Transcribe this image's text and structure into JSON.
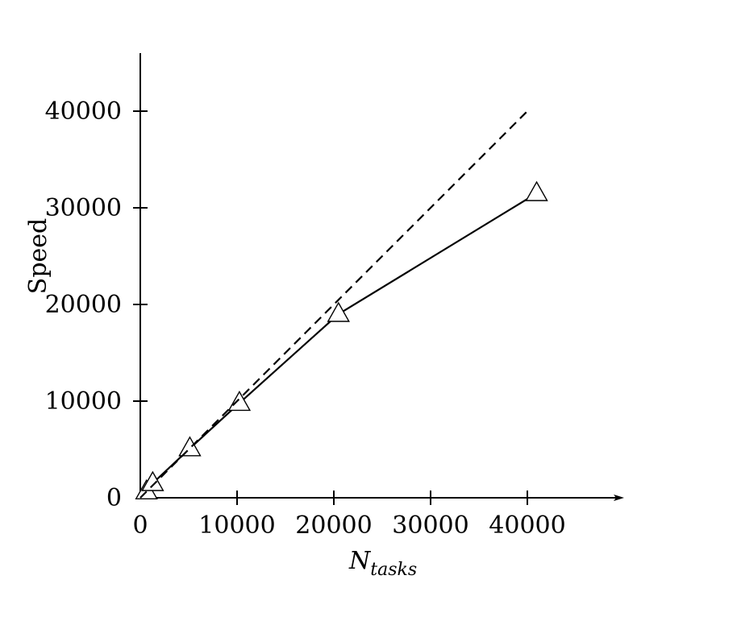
{
  "chart_data": {
    "type": "line",
    "title": "",
    "xlabel": "N",
    "xlabel_subscript": "tasks",
    "ylabel": "Speed",
    "xlim": [
      0,
      50000
    ],
    "ylim": [
      0,
      46000
    ],
    "x_ticks": [
      0,
      10000,
      20000,
      30000,
      40000
    ],
    "x_tick_labels": [
      "0",
      "10000",
      "20000",
      "30000",
      "40000"
    ],
    "y_ticks": [
      0,
      10000,
      20000,
      30000,
      40000
    ],
    "y_tick_labels": [
      "0",
      "10000",
      "20000",
      "30000",
      "40000"
    ],
    "grid": false,
    "series": [
      {
        "style": "solid",
        "marker": "triangle",
        "color": "#000000",
        "x": [
          640,
          1280,
          5120,
          10240,
          20480,
          40960
        ],
        "y": [
          640,
          1500,
          5100,
          9800,
          19000,
          31500
        ]
      },
      {
        "style": "dashed",
        "marker": "none",
        "color": "#000000",
        "x": [
          0,
          40000
        ],
        "y": [
          0,
          40000
        ]
      }
    ]
  }
}
